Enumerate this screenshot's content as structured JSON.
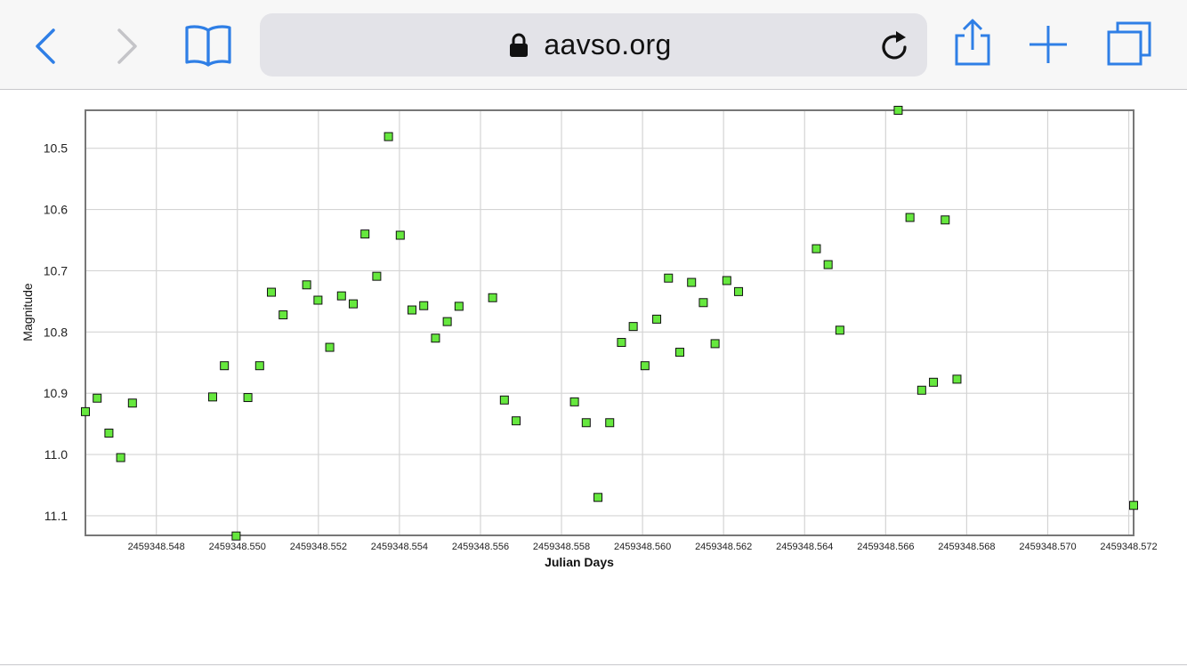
{
  "browser": {
    "domain": "aavso.org",
    "icons": {
      "back": "chevron-left-icon",
      "forward": "chevron-right-icon",
      "bookmarks": "open-book-icon",
      "lock": "lock-icon",
      "reload": "reload-icon",
      "share": "share-icon",
      "new_tab": "plus-icon",
      "tabs": "tabs-icon"
    },
    "accent_color": "#2f7fe6"
  },
  "chart_data": {
    "type": "scatter",
    "xlabel": "Julian Days",
    "ylabel": "Magnitude",
    "y_inverted": true,
    "xlim": [
      2459348.54625,
      2459348.57212
    ],
    "ylim": [
      10.438,
      11.132
    ],
    "x_ticks": [
      "2459348.548",
      "2459348.550",
      "2459348.552",
      "2459348.554",
      "2459348.556",
      "2459348.558",
      "2459348.560",
      "2459348.562",
      "2459348.564",
      "2459348.566",
      "2459348.568",
      "2459348.570",
      "2459348.572"
    ],
    "y_ticks": [
      "10.5",
      "10.6",
      "10.7",
      "10.8",
      "10.9",
      "11.0",
      "11.1"
    ],
    "grid": true,
    "marker": "square",
    "marker_color": "#66e83e",
    "points": [
      [
        2459348.54625,
        10.93
      ],
      [
        2459348.54654,
        10.908
      ],
      [
        2459348.54683,
        10.965
      ],
      [
        2459348.54712,
        11.005
      ],
      [
        2459348.54741,
        10.916
      ],
      [
        2459348.54939,
        10.906
      ],
      [
        2459348.54968,
        10.855
      ],
      [
        2459348.54997,
        11.133
      ],
      [
        2459348.55026,
        10.907
      ],
      [
        2459348.55055,
        10.855
      ],
      [
        2459348.55084,
        10.735
      ],
      [
        2459348.55113,
        10.772
      ],
      [
        2459348.55171,
        10.723
      ],
      [
        2459348.55199,
        10.748
      ],
      [
        2459348.55228,
        10.825
      ],
      [
        2459348.55257,
        10.741
      ],
      [
        2459348.55286,
        10.754
      ],
      [
        2459348.55315,
        10.64
      ],
      [
        2459348.55344,
        10.709
      ],
      [
        2459348.55373,
        10.481
      ],
      [
        2459348.55402,
        10.642
      ],
      [
        2459348.55431,
        10.764
      ],
      [
        2459348.5546,
        10.757
      ],
      [
        2459348.55489,
        10.81
      ],
      [
        2459348.55518,
        10.783
      ],
      [
        2459348.55547,
        10.758
      ],
      [
        2459348.5563,
        10.744
      ],
      [
        2459348.55659,
        10.911
      ],
      [
        2459348.55688,
        10.945
      ],
      [
        2459348.55832,
        10.914
      ],
      [
        2459348.55861,
        10.948
      ],
      [
        2459348.5589,
        11.07
      ],
      [
        2459348.55919,
        10.948
      ],
      [
        2459348.55948,
        10.817
      ],
      [
        2459348.55977,
        10.791
      ],
      [
        2459348.56006,
        10.855
      ],
      [
        2459348.56035,
        10.779
      ],
      [
        2459348.56064,
        10.712
      ],
      [
        2459348.56092,
        10.833
      ],
      [
        2459348.56121,
        10.719
      ],
      [
        2459348.5615,
        10.752
      ],
      [
        2459348.56179,
        10.819
      ],
      [
        2459348.56208,
        10.716
      ],
      [
        2459348.56237,
        10.734
      ],
      [
        2459348.56429,
        10.664
      ],
      [
        2459348.56458,
        10.69
      ],
      [
        2459348.56487,
        10.797
      ],
      [
        2459348.56631,
        10.438
      ],
      [
        2459348.5666,
        10.613
      ],
      [
        2459348.56689,
        10.895
      ],
      [
        2459348.56718,
        10.882
      ],
      [
        2459348.56747,
        10.617
      ],
      [
        2459348.56776,
        10.877
      ],
      [
        2459348.57212,
        11.083
      ]
    ]
  }
}
